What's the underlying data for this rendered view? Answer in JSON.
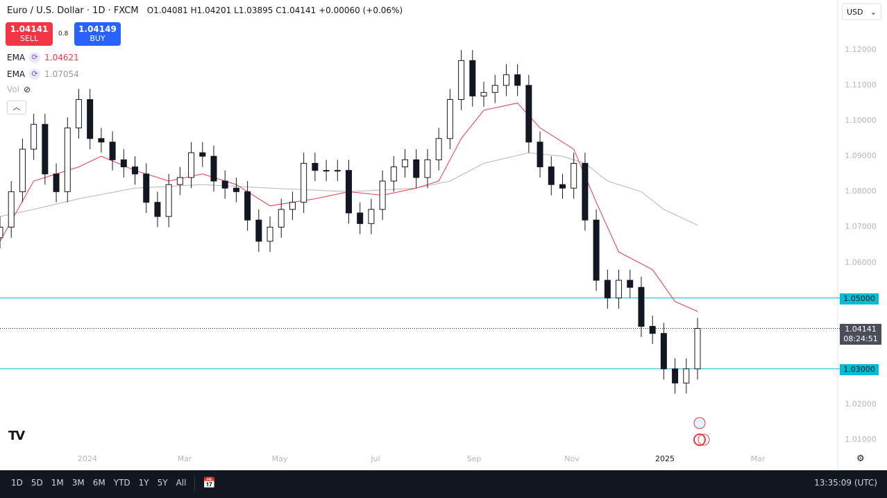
{
  "header": {
    "title": "Euro / U.S. Dollar · 1D · FXCM",
    "open": "O1.04081",
    "high": "H1.04201",
    "low": "L1.03895",
    "close": "C1.04141",
    "change": "+0.00060 (+0.06%)"
  },
  "trade": {
    "sell_price": "1.04141",
    "sell_label": "SELL",
    "spread": "0.8",
    "buy_price": "1.04149",
    "buy_label": "BUY"
  },
  "legend": [
    {
      "name": "EMA",
      "value": "1.04621",
      "color": "#f23645"
    },
    {
      "name": "EMA",
      "value": "1.07054",
      "color": "#9598a1"
    },
    {
      "name": "Vol"
    }
  ],
  "currency": "USD",
  "bottom_bar": {
    "ranges": [
      "1D",
      "5D",
      "1M",
      "3M",
      "6M",
      "YTD",
      "1Y",
      "5Y",
      "All"
    ],
    "clock": "13:35:09 (UTC)"
  },
  "chart_data": {
    "type": "candlestick",
    "symbol": "EURUSD",
    "ylim": [
      1.0,
      1.125
    ],
    "y_ticks": [
      "1.12000",
      "1.11000",
      "1.10000",
      "1.09000",
      "1.08000",
      "1.07000",
      "1.06000",
      "1.05000",
      "1.04000",
      "1.03000",
      "1.02000",
      "1.01000"
    ],
    "x_ticks": [
      "2024",
      "Mar",
      "May",
      "Jul",
      "Sep",
      "Nov",
      "2025",
      "Mar"
    ],
    "dates": [
      "2023-11-08",
      "2023-11-15",
      "2023-11-22",
      "2023-11-29",
      "2023-12-06",
      "2023-12-13",
      "2023-12-20",
      "2023-12-27",
      "2024-01-03",
      "2024-01-10",
      "2024-01-17",
      "2024-01-24",
      "2024-01-31",
      "2024-02-07",
      "2024-02-14",
      "2024-02-21",
      "2024-02-28",
      "2024-03-06",
      "2024-03-13",
      "2024-03-20",
      "2024-03-27",
      "2024-04-03",
      "2024-04-10",
      "2024-04-17",
      "2024-04-24",
      "2024-05-01",
      "2024-05-08",
      "2024-05-15",
      "2024-05-22",
      "2024-05-29",
      "2024-06-05",
      "2024-06-12",
      "2024-06-19",
      "2024-06-26",
      "2024-07-03",
      "2024-07-10",
      "2024-07-17",
      "2024-07-24",
      "2024-07-31",
      "2024-08-07",
      "2024-08-14",
      "2024-08-21",
      "2024-08-28",
      "2024-09-04",
      "2024-09-11",
      "2024-09-18",
      "2024-09-25",
      "2024-10-02",
      "2024-10-09",
      "2024-10-16",
      "2024-10-23",
      "2024-10-30",
      "2024-11-06",
      "2024-11-13",
      "2024-11-20",
      "2024-11-27",
      "2024-12-04",
      "2024-12-11",
      "2024-12-18",
      "2024-12-25",
      "2025-01-01",
      "2025-01-08",
      "2025-01-15"
    ],
    "close": [
      1.07,
      1.08,
      1.092,
      1.099,
      1.085,
      1.08,
      1.098,
      1.106,
      1.095,
      1.094,
      1.089,
      1.087,
      1.085,
      1.077,
      1.073,
      1.082,
      1.084,
      1.091,
      1.09,
      1.083,
      1.081,
      1.08,
      1.072,
      1.066,
      1.07,
      1.075,
      1.077,
      1.088,
      1.086,
      1.086,
      1.086,
      1.074,
      1.071,
      1.075,
      1.083,
      1.087,
      1.089,
      1.084,
      1.089,
      1.095,
      1.106,
      1.117,
      1.107,
      1.108,
      1.11,
      1.113,
      1.11,
      1.094,
      1.087,
      1.082,
      1.081,
      1.088,
      1.072,
      1.055,
      1.05,
      1.055,
      1.053,
      1.042,
      1.04,
      1.03,
      1.026,
      1.03,
      1.04141
    ],
    "ema_fast": [
      [
        "2023-11-08",
        1.066
      ],
      [
        "2023-11-29",
        1.083
      ],
      [
        "2023-12-27",
        1.087
      ],
      [
        "2024-01-10",
        1.09
      ],
      [
        "2024-01-31",
        1.086
      ],
      [
        "2024-02-21",
        1.083
      ],
      [
        "2024-03-13",
        1.085
      ],
      [
        "2024-04-03",
        1.082
      ],
      [
        "2024-04-24",
        1.076
      ],
      [
        "2024-05-22",
        1.078
      ],
      [
        "2024-06-12",
        1.08
      ],
      [
        "2024-07-03",
        1.079
      ],
      [
        "2024-07-24",
        1.081
      ],
      [
        "2024-08-07",
        1.083
      ],
      [
        "2024-08-21",
        1.095
      ],
      [
        "2024-09-04",
        1.103
      ],
      [
        "2024-09-25",
        1.105
      ],
      [
        "2024-10-09",
        1.098
      ],
      [
        "2024-10-30",
        1.092
      ],
      [
        "2024-11-13",
        1.077
      ],
      [
        "2024-11-27",
        1.063
      ],
      [
        "2024-12-18",
        1.058
      ],
      [
        "2025-01-01",
        1.049
      ],
      [
        "2025-01-15",
        1.04621
      ]
    ],
    "ema_slow": [
      [
        "2023-11-08",
        1.073
      ],
      [
        "2023-11-29",
        1.075
      ],
      [
        "2023-12-27",
        1.078
      ],
      [
        "2024-01-31",
        1.081
      ],
      [
        "2024-03-13",
        1.082
      ],
      [
        "2024-04-24",
        1.081
      ],
      [
        "2024-06-12",
        1.08
      ],
      [
        "2024-07-24",
        1.081
      ],
      [
        "2024-08-14",
        1.083
      ],
      [
        "2024-09-04",
        1.088
      ],
      [
        "2024-10-02",
        1.091
      ],
      [
        "2024-10-23",
        1.09
      ],
      [
        "2024-11-06",
        1.088
      ],
      [
        "2024-11-20",
        1.083
      ],
      [
        "2024-12-11",
        1.08
      ],
      [
        "2024-12-25",
        1.075
      ],
      [
        "2025-01-15",
        1.07054
      ]
    ],
    "horizontal_lines": [
      {
        "value": "1.05000",
        "color": "#00bcd4"
      },
      {
        "value": "1.03000",
        "color": "#00bcd4"
      }
    ],
    "current_price": {
      "value": "1.04141",
      "countdown": "08:24:51"
    },
    "colors": {
      "up": "#131722",
      "down": "#131722",
      "ema_fast": "#f23645",
      "ema_slow": "#b2b5be",
      "level": "#00bcd4"
    }
  }
}
